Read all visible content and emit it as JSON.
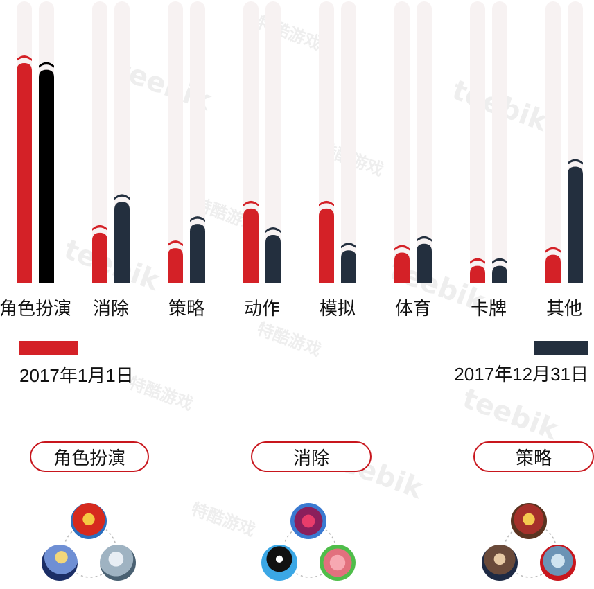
{
  "chart_data": {
    "type": "bar",
    "categories": [
      "角色扮演",
      "消除",
      "策略",
      "动作",
      "模拟",
      "体育",
      "卡牌",
      "其他"
    ],
    "series": [
      {
        "name": "2017年1月1日",
        "color": "#d42127",
        "values": [
          100,
          23,
          16,
          34,
          34,
          14,
          8,
          13
        ]
      },
      {
        "name": "2017年12月31日",
        "color": "#232f3e",
        "values": [
          97,
          37,
          27,
          22,
          15,
          18,
          8,
          53
        ]
      }
    ],
    "first_bar_dark_color": "#000000",
    "track_color": "#f7f2f2",
    "ylim": [
      0,
      128
    ],
    "grid": false,
    "legend_placement": "bottom"
  },
  "legend": {
    "start_label": "2017年1月1日",
    "end_label": "2017年12月31日",
    "start_color": "#d42127",
    "end_color": "#232f3e"
  },
  "highlights": [
    {
      "label": "角色扮演",
      "icons": [
        "monster-strike-icon",
        "fate-grand-order-icon",
        "granblue-fantasy-icon"
      ]
    },
    {
      "label": "消除",
      "icons": [
        "puzzle-dragons-icon",
        "disney-tsum-tsum-icon",
        "line-pokopang-icon"
      ]
    },
    {
      "label": "策略",
      "icons": [
        "lords-mobile-icon",
        "three-kingdoms-icon",
        "warship-anniversary-icon"
      ]
    }
  ],
  "watermarks": {
    "brand": "teebik",
    "cn": "特酷游戏"
  },
  "accent": "#c8161d"
}
